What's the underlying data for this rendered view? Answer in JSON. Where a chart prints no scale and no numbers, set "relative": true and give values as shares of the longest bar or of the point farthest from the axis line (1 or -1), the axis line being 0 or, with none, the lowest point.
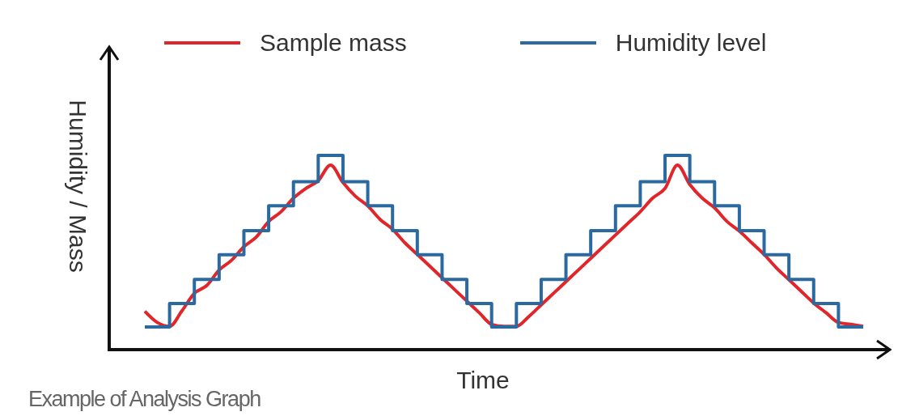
{
  "chart_data": {
    "type": "line",
    "relative": true,
    "xlabel": "Time",
    "ylabel": "Humidity / Mass",
    "annotations": [
      "Example of Analysis Graph"
    ],
    "legend": "top",
    "grid": false,
    "marker": "none",
    "line_style": "solid",
    "categories": [
      null,
      null,
      null,
      null,
      null,
      null,
      null,
      null,
      null,
      null,
      null,
      null,
      null,
      null,
      null,
      null,
      null,
      null,
      null,
      null,
      null,
      null,
      null,
      null,
      null,
      null,
      null,
      null,
      null,
      null,
      null,
      null,
      null,
      null,
      null,
      null,
      null,
      null,
      null,
      null,
      null,
      null,
      null,
      null,
      null,
      null,
      null,
      null,
      null,
      null,
      null,
      null,
      null,
      null,
      null,
      null,
      null,
      null,
      null
    ],
    "series": [
      {
        "name": "Sample mass",
        "color": "#e0262a",
        "values": [
          0.197,
          0.14,
          0.12,
          0.2,
          0.29,
          0.33,
          0.41,
          0.46,
          0.53,
          0.58,
          0.66,
          0.71,
          0.78,
          0.83,
          0.87,
          0.95,
          0.86,
          0.79,
          0.74,
          0.67,
          0.62,
          0.55,
          0.49,
          0.43,
          0.37,
          0.31,
          0.25,
          0.19,
          0.13,
          0.12,
          0.12,
          0.17,
          0.23,
          0.29,
          0.35,
          0.41,
          0.47,
          0.53,
          0.59,
          0.65,
          0.71,
          0.78,
          0.83,
          0.95,
          0.85,
          0.78,
          0.73,
          0.66,
          0.61,
          0.55,
          0.49,
          0.42,
          0.36,
          0.3,
          0.24,
          0.19,
          0.14,
          0.13,
          0.12
        ]
      },
      {
        "name": "Humidity level",
        "type": "step",
        "color": "#2a6aa0",
        "values": [
          0.117,
          0.117,
          0.237,
          0.237,
          0.361,
          0.361,
          0.489,
          0.489,
          0.613,
          0.613,
          0.741,
          0.741,
          0.865,
          0.865,
          1,
          1,
          0.865,
          0.865,
          0.741,
          0.741,
          0.613,
          0.613,
          0.489,
          0.489,
          0.361,
          0.361,
          0.237,
          0.237,
          0.117,
          0.117,
          0.237,
          0.237,
          0.361,
          0.361,
          0.489,
          0.489,
          0.613,
          0.613,
          0.741,
          0.741,
          0.865,
          0.865,
          1,
          1,
          0.865,
          0.865,
          0.741,
          0.741,
          0.613,
          0.613,
          0.489,
          0.489,
          0.361,
          0.361,
          0.237,
          0.237,
          0.117,
          0.117,
          0.117
        ]
      }
    ]
  }
}
